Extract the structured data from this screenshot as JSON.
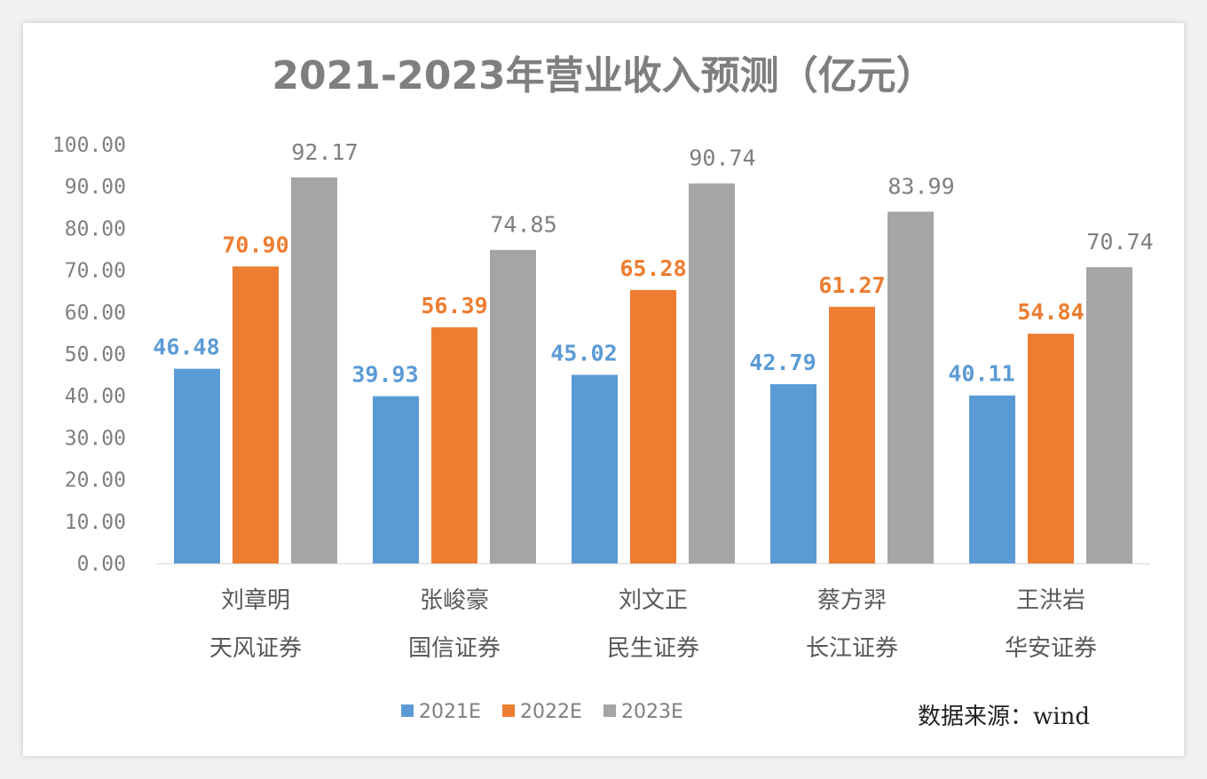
{
  "chart_data": {
    "type": "bar",
    "title": "2021-2023年营业收入预测（亿元）",
    "categories": [
      {
        "analyst": "刘章明",
        "broker": "天风证券"
      },
      {
        "analyst": "张峻豪",
        "broker": "国信证券"
      },
      {
        "analyst": "刘文正",
        "broker": "民生证券"
      },
      {
        "analyst": "蔡方羿",
        "broker": "长江证券"
      },
      {
        "analyst": "王洪岩",
        "broker": "华安证券"
      }
    ],
    "series": [
      {
        "name": "2021E",
        "color": "#5b9bd5",
        "label_color": "#5b9bd5",
        "values": [
          46.48,
          39.93,
          45.02,
          42.79,
          40.11
        ],
        "labels": [
          "46.48",
          "39.93",
          "45.02",
          "42.79",
          "40.11"
        ]
      },
      {
        "name": "2022E",
        "color": "#ed7d31",
        "label_color": "#ed7d31",
        "values": [
          70.9,
          56.39,
          65.28,
          61.27,
          54.84
        ],
        "labels": [
          "70.90",
          "56.39",
          "65.28",
          "61.27",
          "54.84"
        ]
      },
      {
        "name": "2023E",
        "color": "#a5a5a5",
        "label_color": "#7f7f7f",
        "values": [
          92.17,
          74.85,
          90.74,
          83.99,
          70.74
        ],
        "labels": [
          "92.17",
          "74.85",
          "90.74",
          "83.99",
          "70.74"
        ]
      }
    ],
    "ylim": [
      0,
      100
    ],
    "yticks": [
      "0.00",
      "10.00",
      "20.00",
      "30.00",
      "40.00",
      "50.00",
      "60.00",
      "70.00",
      "80.00",
      "90.00",
      "100.00"
    ],
    "grid": false,
    "legend": "bottom",
    "source": "数据来源：wind"
  }
}
